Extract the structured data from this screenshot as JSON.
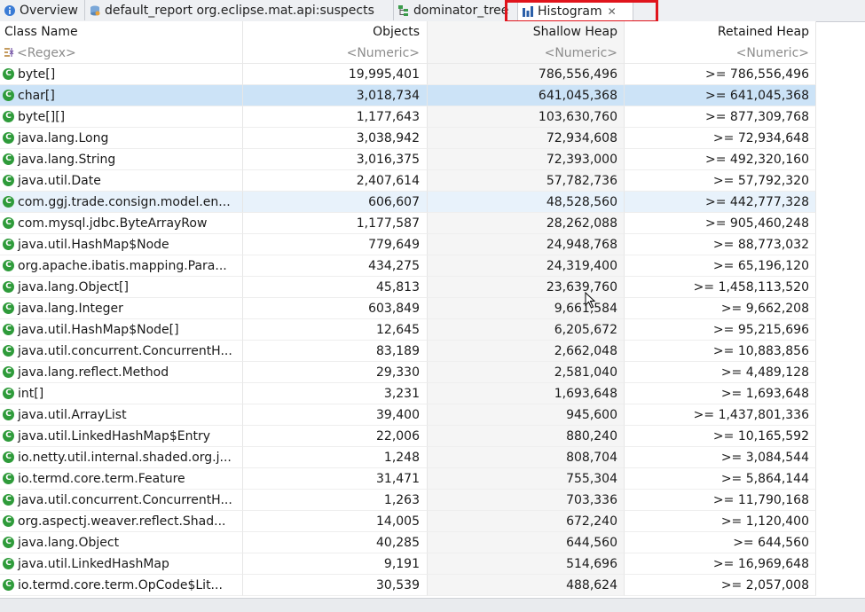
{
  "tabs": [
    {
      "label": "Overview",
      "icon": "info-icon"
    },
    {
      "label": "default_report  org.eclipse.mat.api:suspects",
      "icon": "report-icon"
    },
    {
      "label": "dominator_tree",
      "icon": "tree-icon"
    },
    {
      "label": "Histogram",
      "icon": "histogram-icon",
      "active": true
    }
  ],
  "table": {
    "headers": [
      "Class Name",
      "Objects",
      "Shallow Heap",
      "Retained Heap"
    ],
    "filters": [
      "<Regex>",
      "<Numeric>",
      "<Numeric>",
      "<Numeric>"
    ],
    "rows": [
      {
        "name": "byte[]",
        "objects": "19,995,401",
        "shallow": "786,556,496",
        "retained": ">= 786,556,496"
      },
      {
        "name": "char[]",
        "objects": "3,018,734",
        "shallow": "641,045,368",
        "retained": ">= 641,045,368"
      },
      {
        "name": "byte[][]",
        "objects": "1,177,643",
        "shallow": "103,630,760",
        "retained": ">= 877,309,768"
      },
      {
        "name": "java.lang.Long",
        "objects": "3,038,942",
        "shallow": "72,934,608",
        "retained": ">= 72,934,648"
      },
      {
        "name": "java.lang.String",
        "objects": "3,016,375",
        "shallow": "72,393,000",
        "retained": ">= 492,320,160"
      },
      {
        "name": "java.util.Date",
        "objects": "2,407,614",
        "shallow": "57,782,736",
        "retained": ">= 57,792,320"
      },
      {
        "name": "com.ggj.trade.consign.model.en...",
        "objects": "606,607",
        "shallow": "48,528,560",
        "retained": ">= 442,777,328"
      },
      {
        "name": "com.mysql.jdbc.ByteArrayRow",
        "objects": "1,177,587",
        "shallow": "28,262,088",
        "retained": ">= 905,460,248"
      },
      {
        "name": "java.util.HashMap$Node",
        "objects": "779,649",
        "shallow": "24,948,768",
        "retained": ">= 88,773,032"
      },
      {
        "name": "org.apache.ibatis.mapping.Para...",
        "objects": "434,275",
        "shallow": "24,319,400",
        "retained": ">= 65,196,120"
      },
      {
        "name": "java.lang.Object[]",
        "objects": "45,813",
        "shallow": "23,639,760",
        "retained": ">= 1,458,113,520"
      },
      {
        "name": "java.lang.Integer",
        "objects": "603,849",
        "shallow": "9,661,584",
        "retained": ">= 9,662,208"
      },
      {
        "name": "java.util.HashMap$Node[]",
        "objects": "12,645",
        "shallow": "6,205,672",
        "retained": ">= 95,215,696"
      },
      {
        "name": "java.util.concurrent.ConcurrentH...",
        "objects": "83,189",
        "shallow": "2,662,048",
        "retained": ">= 10,883,856"
      },
      {
        "name": "java.lang.reflect.Method",
        "objects": "29,330",
        "shallow": "2,581,040",
        "retained": ">= 4,489,128"
      },
      {
        "name": "int[]",
        "objects": "3,231",
        "shallow": "1,693,648",
        "retained": ">= 1,693,648"
      },
      {
        "name": "java.util.ArrayList",
        "objects": "39,400",
        "shallow": "945,600",
        "retained": ">= 1,437,801,336"
      },
      {
        "name": "java.util.LinkedHashMap$Entry",
        "objects": "22,006",
        "shallow": "880,240",
        "retained": ">= 10,165,592"
      },
      {
        "name": "io.netty.util.internal.shaded.org.j...",
        "objects": "1,248",
        "shallow": "808,704",
        "retained": ">= 3,084,544"
      },
      {
        "name": "io.termd.core.term.Feature",
        "objects": "31,471",
        "shallow": "755,304",
        "retained": ">= 5,864,144"
      },
      {
        "name": "java.util.concurrent.ConcurrentH...",
        "objects": "1,263",
        "shallow": "703,336",
        "retained": ">= 11,790,168"
      },
      {
        "name": "org.aspectj.weaver.reflect.Shad...",
        "objects": "14,005",
        "shallow": "672,240",
        "retained": ">= 1,120,400"
      },
      {
        "name": "java.lang.Object",
        "objects": "40,285",
        "shallow": "644,560",
        "retained": ">= 644,560"
      },
      {
        "name": "java.util.LinkedHashMap",
        "objects": "9,191",
        "shallow": "514,696",
        "retained": ">= 16,969,648"
      },
      {
        "name": "io.termd.core.term.OpCode$Lit...",
        "objects": "30,539",
        "shallow": "488,624",
        "retained": ">= 2,057,008"
      }
    ]
  },
  "selected_row": 1,
  "hover_row": 6,
  "colors": {
    "highlight": "#e0141c",
    "selection": "#cce3f7",
    "class_icon": "#2e9b3a"
  }
}
